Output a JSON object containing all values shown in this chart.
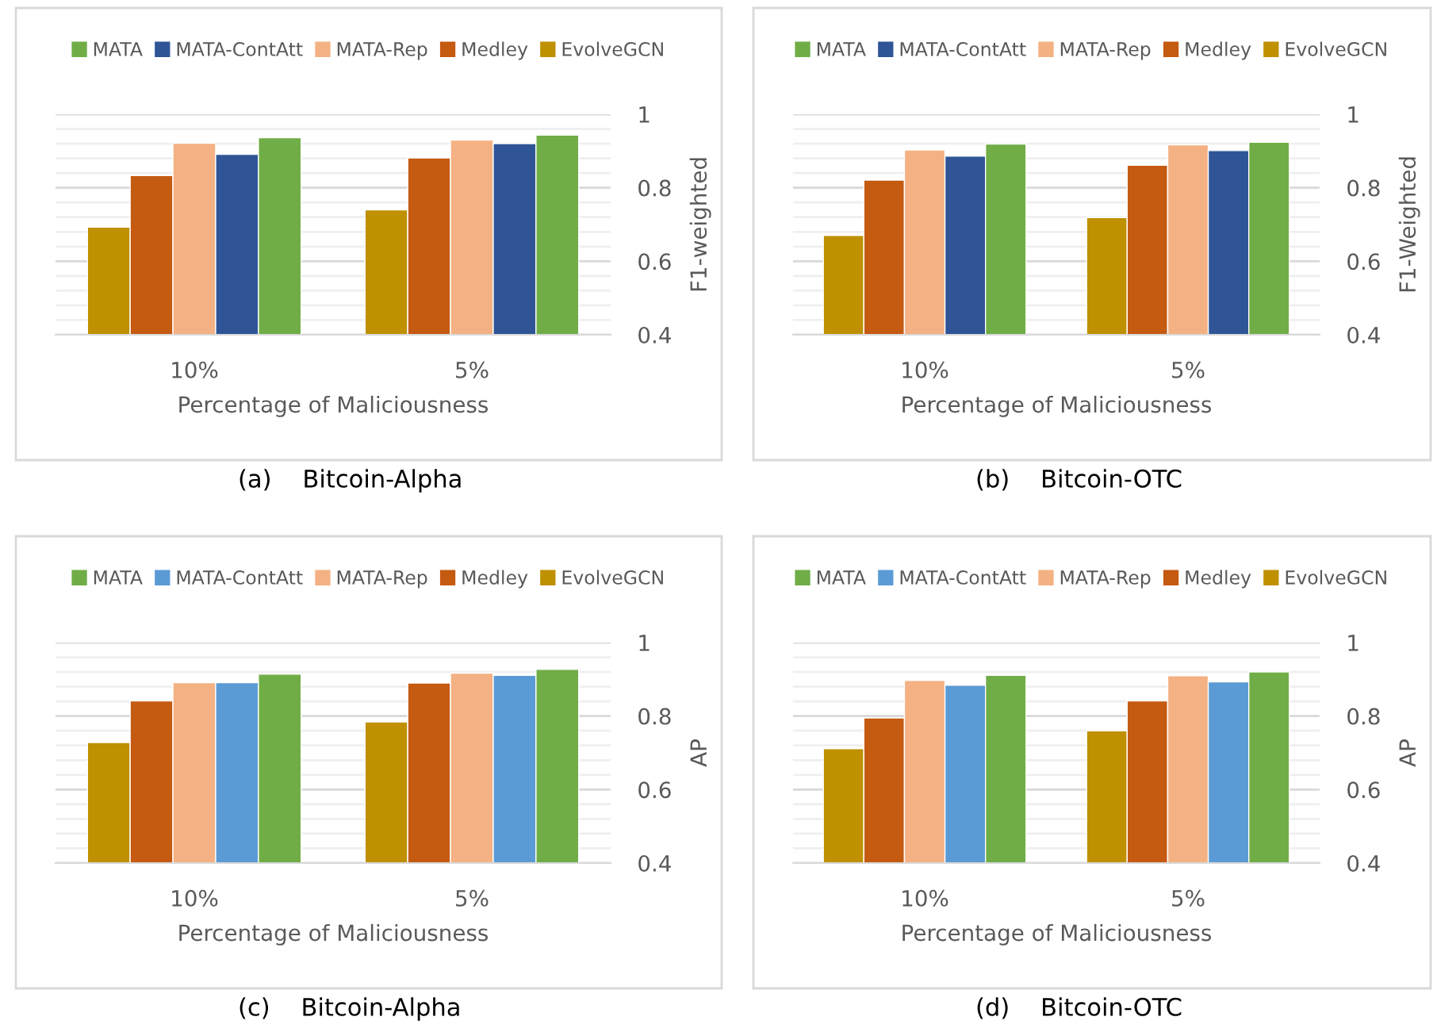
{
  "chart_data": [
    {
      "type": "bar",
      "xlabel": "Percentage of Maliciousness",
      "ylabel": "F1-weighted",
      "annotations": [
        "(a)    Bitcoin-Alpha"
      ],
      "categories": [
        "10%",
        "5%"
      ],
      "ylim": [
        0.4,
        1
      ],
      "yticks": [
        0.4,
        {
          "value": 0.44,
          "label": null
        },
        {
          "value": 0.48,
          "label": null
        },
        {
          "value": 0.52,
          "label": null
        },
        {
          "value": 0.56,
          "label": null
        },
        0.6,
        {
          "value": 0.64,
          "label": null
        },
        {
          "value": 0.68,
          "label": null
        },
        {
          "value": 0.72,
          "label": null
        },
        {
          "value": 0.76,
          "label": null
        },
        0.8,
        {
          "value": 0.84,
          "label": null
        },
        {
          "value": 0.88,
          "label": null
        },
        {
          "value": 0.92,
          "label": null
        },
        {
          "value": 0.96,
          "label": null
        },
        1
      ],
      "grid": "y",
      "legend": "top",
      "series": [
        {
          "name": "EvolveGCN",
          "color": "#bf9000",
          "values": [
            0.693,
            0.74
          ]
        },
        {
          "name": "Medley",
          "color": "#c55a11",
          "values": [
            0.833,
            0.881
          ]
        },
        {
          "name": "MATA-Rep",
          "color": "#f4b183",
          "values": [
            0.921,
            0.93
          ]
        },
        {
          "name": "MATA-ContAtt",
          "color": "#2f5597",
          "values": [
            0.891,
            0.92
          ]
        },
        {
          "name": "MATA",
          "color": "#70ad47",
          "values": [
            0.936,
            0.943
          ]
        }
      ]
    },
    {
      "type": "bar",
      "xlabel": "Percentage of Maliciousness",
      "ylabel": "F1-Weighted",
      "annotations": [
        "(b)    Bitcoin-OTC"
      ],
      "categories": [
        "10%",
        "5%"
      ],
      "ylim": [
        0.4,
        1
      ],
      "yticks": [
        0.4,
        {
          "value": 0.44,
          "label": null
        },
        {
          "value": 0.48,
          "label": null
        },
        {
          "value": 0.52,
          "label": null
        },
        {
          "value": 0.56,
          "label": null
        },
        0.6,
        {
          "value": 0.64,
          "label": null
        },
        {
          "value": 0.68,
          "label": null
        },
        {
          "value": 0.72,
          "label": null
        },
        {
          "value": 0.76,
          "label": null
        },
        0.8,
        {
          "value": 0.84,
          "label": null
        },
        {
          "value": 0.88,
          "label": null
        },
        {
          "value": 0.92,
          "label": null
        },
        {
          "value": 0.96,
          "label": null
        },
        1
      ],
      "grid": "y",
      "legend": "top",
      "series": [
        {
          "name": "EvolveGCN",
          "color": "#bf9000",
          "values": [
            0.67,
            0.719
          ]
        },
        {
          "name": "Medley",
          "color": "#c55a11",
          "values": [
            0.821,
            0.861
          ]
        },
        {
          "name": "MATA-Rep",
          "color": "#f4b183",
          "values": [
            0.903,
            0.917
          ]
        },
        {
          "name": "MATA-ContAtt",
          "color": "#2f5597",
          "values": [
            0.886,
            0.901
          ]
        },
        {
          "name": "MATA",
          "color": "#70ad47",
          "values": [
            0.919,
            0.924
          ]
        }
      ]
    },
    {
      "type": "bar",
      "xlabel": "Percentage of Maliciousness",
      "ylabel": "AP",
      "annotations": [
        "(c)    Bitcoin-Alpha"
      ],
      "categories": [
        "10%",
        "5%"
      ],
      "ylim": [
        0.4,
        1
      ],
      "yticks": [
        0.4,
        {
          "value": 0.44,
          "label": null
        },
        {
          "value": 0.48,
          "label": null
        },
        {
          "value": 0.52,
          "label": null
        },
        {
          "value": 0.56,
          "label": null
        },
        0.6,
        {
          "value": 0.64,
          "label": null
        },
        {
          "value": 0.68,
          "label": null
        },
        {
          "value": 0.72,
          "label": null
        },
        {
          "value": 0.76,
          "label": null
        },
        0.8,
        {
          "value": 0.84,
          "label": null
        },
        {
          "value": 0.88,
          "label": null
        },
        {
          "value": 0.92,
          "label": null
        },
        {
          "value": 0.96,
          "label": null
        },
        1
      ],
      "grid": "y",
      "legend": "top",
      "series": [
        {
          "name": "EvolveGCN",
          "color": "#bf9000",
          "values": [
            0.728,
            0.784
          ]
        },
        {
          "name": "Medley",
          "color": "#c55a11",
          "values": [
            0.841,
            0.89
          ]
        },
        {
          "name": "MATA-Rep",
          "color": "#f4b183",
          "values": [
            0.891,
            0.917
          ]
        },
        {
          "name": "MATA-ContAtt",
          "color": "#5b9bd5",
          "values": [
            0.891,
            0.911
          ]
        },
        {
          "name": "MATA",
          "color": "#70ad47",
          "values": [
            0.914,
            0.927
          ]
        }
      ]
    },
    {
      "type": "bar",
      "xlabel": "Percentage of Maliciousness",
      "ylabel": "AP",
      "annotations": [
        "(d)    Bitcoin-OTC"
      ],
      "categories": [
        "10%",
        "5%"
      ],
      "ylim": [
        0.4,
        1
      ],
      "yticks": [
        0.4,
        {
          "value": 0.44,
          "label": null
        },
        {
          "value": 0.48,
          "label": null
        },
        {
          "value": 0.52,
          "label": null
        },
        {
          "value": 0.56,
          "label": null
        },
        0.6,
        {
          "value": 0.64,
          "label": null
        },
        {
          "value": 0.68,
          "label": null
        },
        {
          "value": 0.72,
          "label": null
        },
        {
          "value": 0.76,
          "label": null
        },
        0.8,
        {
          "value": 0.84,
          "label": null
        },
        {
          "value": 0.88,
          "label": null
        },
        {
          "value": 0.92,
          "label": null
        },
        {
          "value": 0.96,
          "label": null
        },
        1
      ],
      "grid": "y",
      "legend": "top",
      "series": [
        {
          "name": "EvolveGCN",
          "color": "#bf9000",
          "values": [
            0.711,
            0.76
          ]
        },
        {
          "name": "Medley",
          "color": "#c55a11",
          "values": [
            0.795,
            0.841
          ]
        },
        {
          "name": "MATA-Rep",
          "color": "#f4b183",
          "values": [
            0.897,
            0.91
          ]
        },
        {
          "name": "MATA-ContAtt",
          "color": "#5b9bd5",
          "values": [
            0.884,
            0.893
          ]
        },
        {
          "name": "MATA",
          "color": "#70ad47",
          "values": [
            0.911,
            0.92
          ]
        }
      ]
    }
  ]
}
